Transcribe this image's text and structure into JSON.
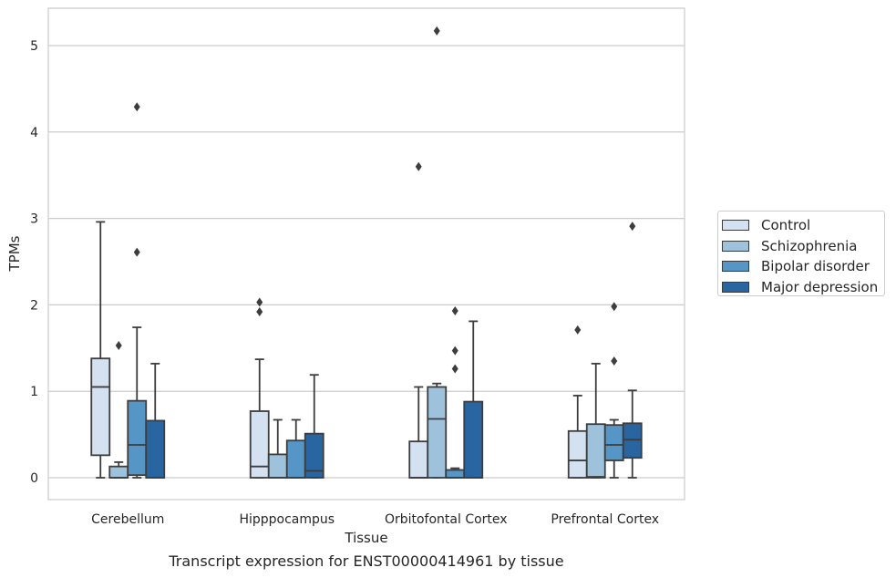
{
  "caption": "Transcript expression for ENST00000414961 by tissue",
  "chart_data": {
    "type": "box",
    "xlabel": "Tissue",
    "ylabel": "TPMs",
    "ylim": [
      -0.25,
      5.45
    ],
    "yticks": [
      0,
      1,
      2,
      3,
      4,
      5
    ],
    "categories": [
      "Cerebellum",
      "Hipppocampus",
      "Orbitofontal Cortex",
      "Prefrontal Cortex"
    ],
    "grid": "horizontal",
    "legend_position": "right",
    "series": [
      {
        "name": "Control",
        "color": "#d3e1f0",
        "boxes": [
          {
            "whislo": 0.0,
            "q1": 0.26,
            "med": 1.05,
            "q3": 1.38,
            "whishi": 2.96,
            "fliers": []
          },
          {
            "whislo": 0.0,
            "q1": 0.0,
            "med": 0.13,
            "q3": 0.77,
            "whishi": 1.37,
            "fliers": [
              1.92,
              2.03
            ]
          },
          {
            "whislo": 0.0,
            "q1": 0.0,
            "med": 0.0,
            "q3": 0.42,
            "whishi": 1.05,
            "fliers": [
              3.6
            ]
          },
          {
            "whislo": 0.0,
            "q1": 0.0,
            "med": 0.2,
            "q3": 0.54,
            "whishi": 0.95,
            "fliers": [
              1.71
            ]
          }
        ]
      },
      {
        "name": "Schizophrenia",
        "color": "#9ec2dc",
        "boxes": [
          {
            "whislo": 0.0,
            "q1": 0.0,
            "med": 0.0,
            "q3": 0.13,
            "whishi": 0.18,
            "fliers": [
              1.53
            ]
          },
          {
            "whislo": 0.0,
            "q1": 0.0,
            "med": 0.0,
            "q3": 0.27,
            "whishi": 0.67,
            "fliers": []
          },
          {
            "whislo": 0.0,
            "q1": 0.0,
            "med": 0.68,
            "q3": 1.05,
            "whishi": 1.09,
            "fliers": [
              5.17
            ]
          },
          {
            "whislo": 0.0,
            "q1": 0.0,
            "med": 0.01,
            "q3": 0.62,
            "whishi": 1.32,
            "fliers": []
          }
        ]
      },
      {
        "name": "Bipolar disorder",
        "color": "#5596c6",
        "boxes": [
          {
            "whislo": 0.0,
            "q1": 0.03,
            "med": 0.38,
            "q3": 0.89,
            "whishi": 1.74,
            "fliers": [
              2.61,
              4.29
            ]
          },
          {
            "whislo": 0.0,
            "q1": 0.0,
            "med": 0.0,
            "q3": 0.43,
            "whishi": 0.67,
            "fliers": []
          },
          {
            "whislo": 0.0,
            "q1": 0.0,
            "med": 0.0,
            "q3": 0.09,
            "whishi": 0.11,
            "fliers": [
              1.26,
              1.47,
              1.93
            ]
          },
          {
            "whislo": 0.0,
            "q1": 0.2,
            "med": 0.38,
            "q3": 0.61,
            "whishi": 0.67,
            "fliers": [
              1.35,
              1.98
            ]
          }
        ]
      },
      {
        "name": "Major depression",
        "color": "#2865a1",
        "boxes": [
          {
            "whislo": 0.0,
            "q1": 0.0,
            "med": 0.0,
            "q3": 0.66,
            "whishi": 1.32,
            "fliers": []
          },
          {
            "whislo": 0.0,
            "q1": 0.0,
            "med": 0.08,
            "q3": 0.51,
            "whishi": 1.19,
            "fliers": []
          },
          {
            "whislo": 0.0,
            "q1": 0.0,
            "med": 0.0,
            "q3": 0.88,
            "whishi": 1.81,
            "fliers": []
          },
          {
            "whislo": 0.0,
            "q1": 0.23,
            "med": 0.44,
            "q3": 0.63,
            "whishi": 1.01,
            "fliers": [
              2.91
            ]
          }
        ]
      }
    ]
  }
}
